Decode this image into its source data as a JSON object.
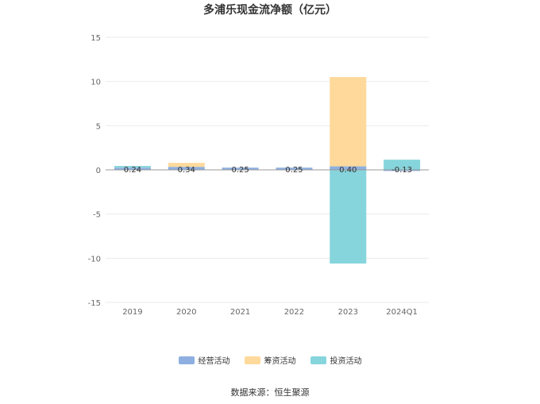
{
  "title": "多浦乐现金流净额（亿元）",
  "source": "数据来源：恒生聚源",
  "chart_data": {
    "type": "bar",
    "stacked": true,
    "categories": [
      "2019",
      "2020",
      "2021",
      "2022",
      "2023",
      "2024Q1"
    ],
    "ylim": [
      -15,
      15
    ],
    "yticks": [
      15,
      10,
      5,
      0,
      -5,
      -10,
      -15
    ],
    "grid": true,
    "legend_position": "bottom",
    "series": [
      {
        "name": "经营活动",
        "color": "#8eb0e0",
        "values": [
          0.24,
          0.34,
          0.25,
          0.25,
          0.4,
          -0.13
        ]
      },
      {
        "name": "筹资活动",
        "color": "#ffd99b",
        "values": [
          0.0,
          0.45,
          0.0,
          0.0,
          10.1,
          0.0
        ]
      },
      {
        "name": "投资活动",
        "color": "#86d5dc",
        "values": [
          0.2,
          0.0,
          0.0,
          0.0,
          -10.6,
          1.15
        ]
      }
    ],
    "data_labels": [
      "0.24",
      "0.34",
      "0.25",
      "0.25",
      "0.40",
      "-0.13"
    ]
  }
}
